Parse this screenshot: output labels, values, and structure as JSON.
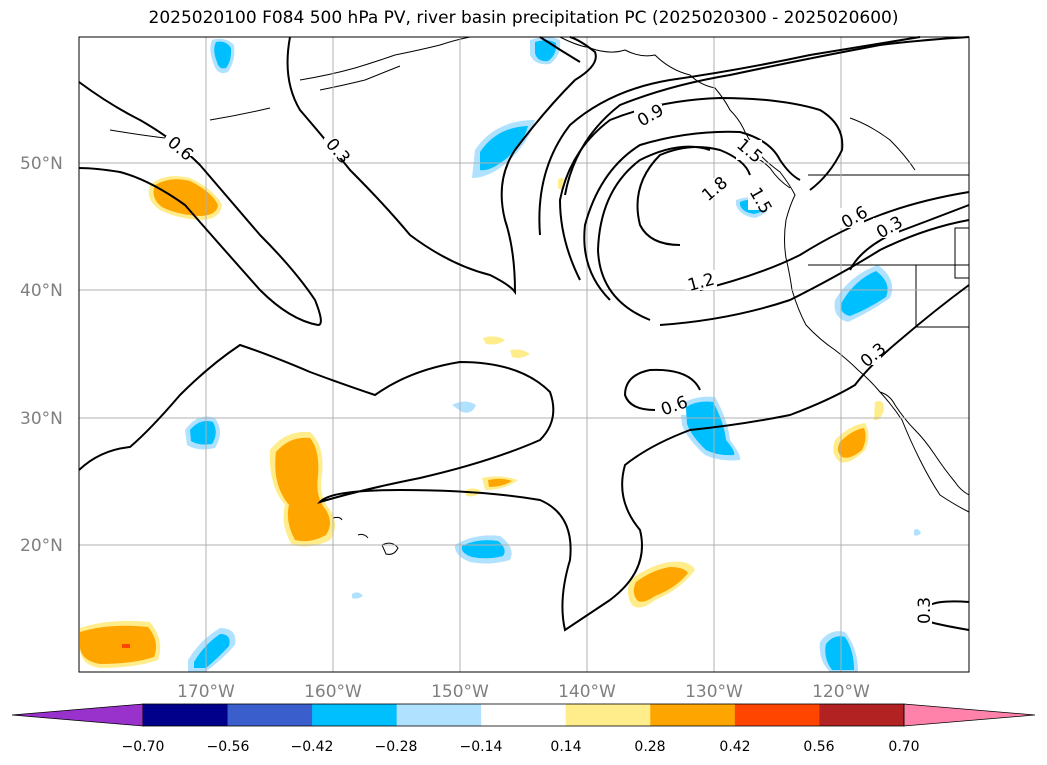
{
  "title": "2025020100 F084 500 hPa PV, river basin precipitation PC (2025020300 - 2025020600)",
  "map": {
    "lat_labels": [
      "50°N",
      "40°N",
      "30°N",
      "20°N"
    ],
    "lon_labels": [
      "170°W",
      "160°W",
      "150°W",
      "140°W",
      "130°W",
      "120°W"
    ],
    "contour_labels": [
      "0.6",
      "0.3",
      "0.9",
      "1.5",
      "1.8",
      "1.5",
      "1.2",
      "0.6",
      "0.3",
      "0.3",
      "0.6",
      "0.3"
    ]
  },
  "colorbar": {
    "tick_labels": [
      "−0.70",
      "−0.56",
      "−0.42",
      "−0.28",
      "−0.14",
      "0.14",
      "0.28",
      "0.42",
      "0.56",
      "0.70"
    ],
    "colors": [
      "#9932cc",
      "#00008b",
      "#3a5fcd",
      "#00bfff",
      "#b0e2ff",
      "#ffffff",
      "#ffec8b",
      "#ffa500",
      "#ff4500",
      "#b22222",
      "#ff82ab"
    ]
  }
}
